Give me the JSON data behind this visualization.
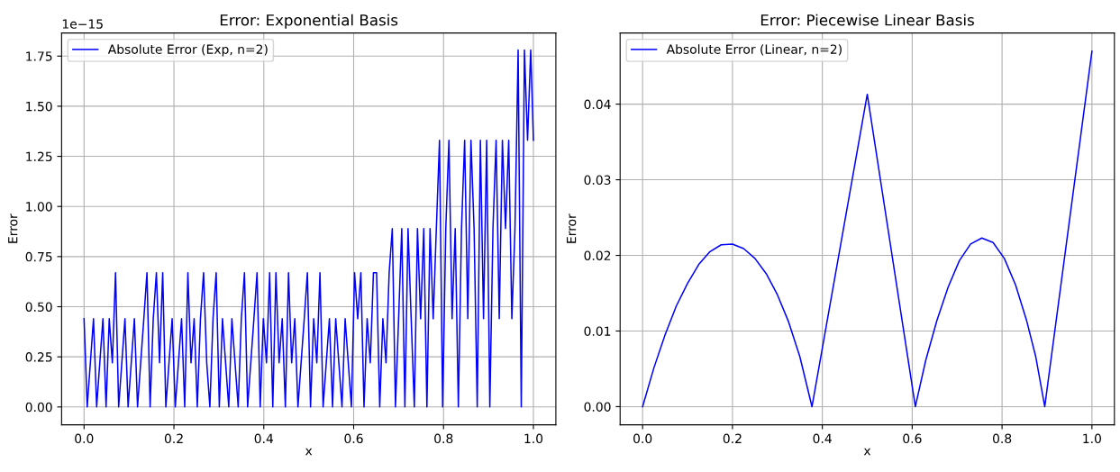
{
  "chart_data": [
    {
      "type": "line",
      "title": "Error: Exponential Basis",
      "xlabel": "x",
      "ylabel": "Error",
      "annotations": [
        "1e−15"
      ],
      "x": [
        0.0,
        0.007,
        0.014,
        0.021,
        0.028,
        0.035,
        0.042,
        0.049,
        0.056,
        0.063,
        0.07,
        0.077,
        0.084,
        0.091,
        0.098,
        0.105,
        0.112,
        0.119,
        0.126,
        0.133,
        0.14,
        0.147,
        0.154,
        0.161,
        0.168,
        0.175,
        0.182,
        0.189,
        0.196,
        0.203,
        0.21,
        0.217,
        0.224,
        0.231,
        0.238,
        0.245,
        0.252,
        0.259,
        0.266,
        0.273,
        0.28,
        0.287,
        0.294,
        0.301,
        0.308,
        0.315,
        0.322,
        0.329,
        0.336,
        0.343,
        0.35,
        0.357,
        0.364,
        0.371,
        0.378,
        0.385,
        0.392,
        0.399,
        0.406,
        0.413,
        0.42,
        0.427,
        0.434,
        0.441,
        0.448,
        0.455,
        0.462,
        0.469,
        0.476,
        0.483,
        0.49,
        0.497,
        0.504,
        0.511,
        0.518,
        0.525,
        0.532,
        0.539,
        0.546,
        0.553,
        0.56,
        0.567,
        0.574,
        0.581,
        0.588,
        0.595,
        0.602,
        0.609,
        0.616,
        0.623,
        0.63,
        0.637,
        0.644,
        0.651,
        0.658,
        0.665,
        0.672,
        0.679,
        0.686,
        0.693,
        0.7,
        0.707,
        0.714,
        0.721,
        0.728,
        0.735,
        0.742,
        0.749,
        0.756,
        0.763,
        0.77,
        0.777,
        0.784,
        0.791,
        0.798,
        0.805,
        0.812,
        0.819,
        0.826,
        0.833,
        0.84,
        0.847,
        0.854,
        0.861,
        0.868,
        0.875,
        0.882,
        0.889,
        0.896,
        0.903,
        0.91,
        0.917,
        0.924,
        0.931,
        0.938,
        0.945,
        0.952,
        0.959,
        0.966,
        0.973,
        0.98,
        0.987,
        0.994,
        1.0
      ],
      "series": [
        {
          "name": "Absolute Error (Exp, n=2)",
          "color": "#0000ff",
          "values": [
            0.44,
            0,
            0.22,
            0.44,
            0,
            0.22,
            0.44,
            0,
            0.44,
            0.22,
            0.67,
            0,
            0.22,
            0.44,
            0,
            0.22,
            0.44,
            0,
            0.22,
            0.44,
            0.67,
            0,
            0.44,
            0.67,
            0.22,
            0.67,
            0,
            0.22,
            0.44,
            0,
            0.22,
            0.44,
            0,
            0.67,
            0.22,
            0.44,
            0,
            0.44,
            0.67,
            0.22,
            0,
            0.44,
            0.67,
            0,
            0.44,
            0.22,
            0,
            0.44,
            0.22,
            0,
            0.44,
            0.67,
            0,
            0.22,
            0.44,
            0.67,
            0,
            0.44,
            0.22,
            0.67,
            0,
            0.67,
            0.22,
            0.44,
            0,
            0.67,
            0.22,
            0.44,
            0,
            0.22,
            0.44,
            0.67,
            0,
            0.44,
            0.22,
            0.67,
            0,
            0.22,
            0.44,
            0,
            0.44,
            0.22,
            0,
            0.44,
            0.22,
            0,
            0.67,
            0.44,
            0.67,
            0,
            0.44,
            0.22,
            0.67,
            0.67,
            0,
            0.44,
            0.22,
            0.67,
            0.89,
            0,
            0.44,
            0.89,
            0,
            0.89,
            0.44,
            0,
            0.89,
            0.44,
            0.89,
            0,
            0.89,
            0.44,
            0.89,
            1.33,
            0,
            0.89,
            1.33,
            0.44,
            0.89,
            0,
            0.89,
            1.33,
            0.44,
            1.33,
            0.89,
            0,
            1.33,
            0.44,
            1.33,
            0,
            0.89,
            1.33,
            0.44,
            1.33,
            0.89,
            1.33,
            0.44,
            0.89,
            1.78,
            0,
            1.78,
            1.33,
            1.78,
            1.33
          ]
        }
      ],
      "xlim": [
        -0.05,
        1.05
      ],
      "xticks": [
        {
          "value": 0,
          "label": "0.0"
        },
        {
          "value": 0.2,
          "label": "0.2"
        },
        {
          "value": 0.4,
          "label": "0.4"
        },
        {
          "value": 0.6,
          "label": "0.6"
        },
        {
          "value": 0.8,
          "label": "0.8"
        },
        {
          "value": 1,
          "label": "1.0"
        }
      ],
      "ylim": [
        -0.089,
        1.865
      ],
      "yticks": [
        {
          "value": 0,
          "label": "0.00"
        },
        {
          "value": 0.25,
          "label": "0.25"
        },
        {
          "value": 0.5,
          "label": "0.50"
        },
        {
          "value": 0.75,
          "label": "0.75"
        },
        {
          "value": 1,
          "label": "1.00"
        },
        {
          "value": 1.25,
          "label": "1.25"
        },
        {
          "value": 1.5,
          "label": "1.50"
        },
        {
          "value": 1.75,
          "label": "1.75"
        }
      ],
      "grid": true,
      "legend": "top left"
    },
    {
      "type": "line",
      "title": "Error: Piecewise Linear Basis",
      "xlabel": "x",
      "ylabel": "Error",
      "x": [
        0,
        0.025,
        0.05,
        0.075,
        0.1,
        0.125,
        0.15,
        0.175,
        0.2,
        0.225,
        0.25,
        0.275,
        0.3,
        0.325,
        0.35,
        0.377,
        0.5,
        0.607,
        0.63,
        0.655,
        0.68,
        0.705,
        0.73,
        0.755,
        0.78,
        0.805,
        0.83,
        0.855,
        0.875,
        0.895,
        1.0
      ],
      "series": [
        {
          "name": "Absolute Error (Linear, n=2)",
          "color": "#0000ff",
          "values": [
            0,
            0.0051,
            0.0095,
            0.0133,
            0.0163,
            0.0188,
            0.0205,
            0.0214,
            0.0215,
            0.0209,
            0.0196,
            0.0176,
            0.0148,
            0.0112,
            0.0066,
            0,
            0.0413,
            0,
            0.0061,
            0.0114,
            0.0158,
            0.0193,
            0.0215,
            0.0223,
            0.0217,
            0.0196,
            0.0161,
            0.0113,
            0.0066,
            0,
            0.047
          ]
        }
      ],
      "xlim": [
        -0.05,
        1.05
      ],
      "xticks": [
        {
          "value": 0,
          "label": "0.0"
        },
        {
          "value": 0.2,
          "label": "0.2"
        },
        {
          "value": 0.4,
          "label": "0.4"
        },
        {
          "value": 0.6,
          "label": "0.6"
        },
        {
          "value": 0.8,
          "label": "0.8"
        },
        {
          "value": 1,
          "label": "1.0"
        }
      ],
      "ylim": [
        -0.0024,
        0.0494
      ],
      "yticks": [
        {
          "value": 0,
          "label": "0.00"
        },
        {
          "value": 0.01,
          "label": "0.01"
        },
        {
          "value": 0.02,
          "label": "0.02"
        },
        {
          "value": 0.03,
          "label": "0.03"
        },
        {
          "value": 0.04,
          "label": "0.04"
        }
      ],
      "grid": true,
      "legend": "top left"
    }
  ]
}
